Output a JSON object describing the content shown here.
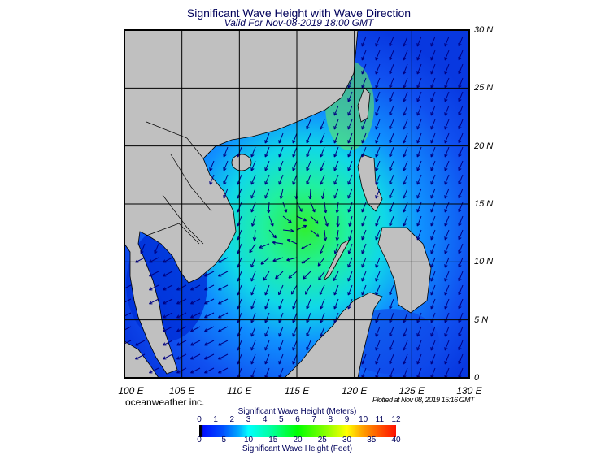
{
  "title": "Significant Wave Height with Wave Direction",
  "subtitle": "Valid For Nov-08-2019 18:00 GMT",
  "map": {
    "lon_range": [
      100,
      130
    ],
    "lat_range": [
      0,
      30
    ],
    "grid_step_deg": 5,
    "lon_labels": [
      "100 E",
      "105 E",
      "110 E",
      "115 E",
      "120 E",
      "125 E",
      "130 E"
    ],
    "lat_labels": [
      "30 N",
      "25 N",
      "20 N",
      "15 N",
      "10 N",
      "5 N",
      "0"
    ],
    "land_color": "#c0c0c0",
    "grid_color": "#000000",
    "arrow_color": "#000080",
    "prevailing_wave_direction": "toward southwest"
  },
  "credit": "oceanweather inc.",
  "plotted": "Plotted at Nov 08, 2019 15:16 GMT",
  "colorbar": {
    "meters_label": "Significant Wave Height (Meters)",
    "feet_label": "Significant Wave Height (Feet)",
    "meters_ticks": [
      "0",
      "1",
      "2",
      "3",
      "4",
      "5",
      "6",
      "7",
      "8",
      "9",
      "10",
      "11",
      "12"
    ],
    "feet_ticks": [
      "0",
      "5",
      "10",
      "15",
      "20",
      "25",
      "30",
      "35",
      "40"
    ],
    "range_m": [
      0,
      12
    ]
  }
}
